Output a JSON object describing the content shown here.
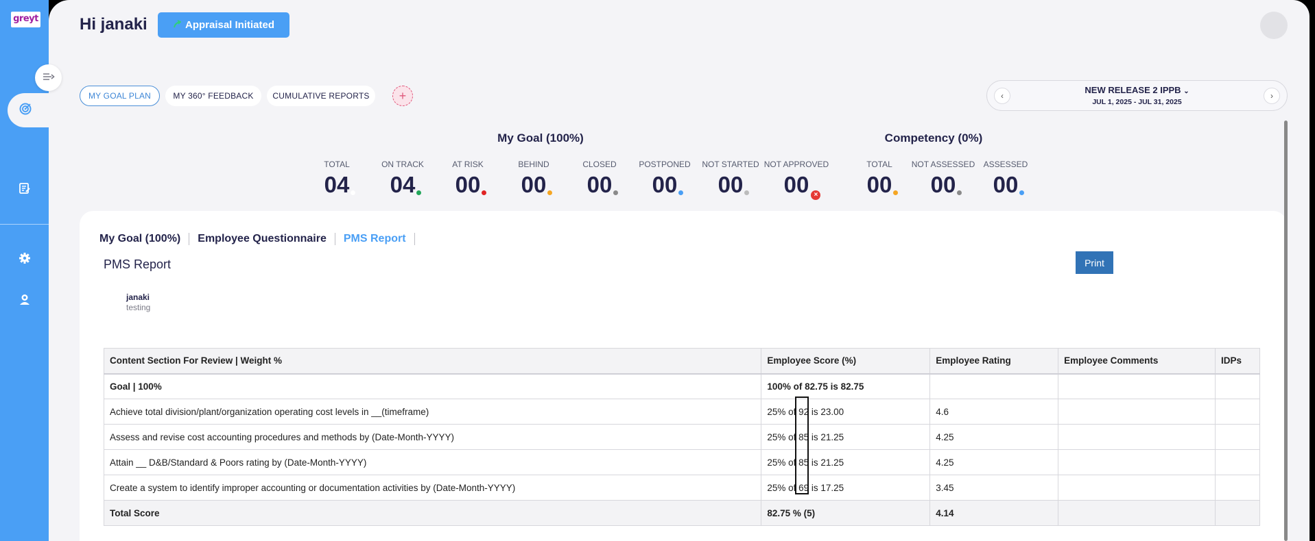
{
  "sidebar": {
    "logo_text": "greyt"
  },
  "header": {
    "greeting": "Hi janaki",
    "status": "Appraisal Initiated"
  },
  "nav_tabs": [
    "MY GOAL PLAN",
    "MY 360° FEEDBACK",
    "CUMULATIVE REPORTS"
  ],
  "release": {
    "name": "NEW RELEASE 2 IPPB",
    "dates": "JUL 1, 2025 - JUL 31, 2025"
  },
  "goal_summary": {
    "title": "My Goal (100%)",
    "stats": [
      {
        "label": "TOTAL",
        "value": "04",
        "color": "#ffffff"
      },
      {
        "label": "ON TRACK",
        "value": "04",
        "color": "#22a65a"
      },
      {
        "label": "AT RISK",
        "value": "00",
        "color": "#e02424"
      },
      {
        "label": "BEHIND",
        "value": "00",
        "color": "#f5a623"
      },
      {
        "label": "CLOSED",
        "value": "00",
        "color": "#8a8a8a"
      },
      {
        "label": "POSTPONED",
        "value": "00",
        "color": "#4a9ff5"
      },
      {
        "label": "NOT STARTED",
        "value": "00",
        "color": "#bcbcbc"
      },
      {
        "label": "NOT APPROVED",
        "value": "00",
        "color": "#e53935"
      }
    ]
  },
  "competency_summary": {
    "title": "Competency (0%)",
    "stats": [
      {
        "label": "TOTAL",
        "value": "00",
        "color": "#f5a623"
      },
      {
        "label": "NOT ASSESSED",
        "value": "00",
        "color": "#8a8a8a"
      },
      {
        "label": "ASSESSED",
        "value": "00",
        "color": "#4a9ff5"
      }
    ]
  },
  "content_tabs": [
    "My Goal (100%)",
    "Employee Questionnaire",
    "PMS Report"
  ],
  "report": {
    "title": "PMS Report",
    "print_label": "Print",
    "employee_name": "janaki",
    "employee_dept": "testing",
    "columns": [
      "Content Section For Review | Weight %",
      "Employee Score (%)",
      "Employee Rating",
      "Employee Comments",
      "IDPs"
    ],
    "rows": [
      [
        "Goal | 100%",
        "100% of 82.75 is 82.75",
        "",
        "",
        ""
      ],
      [
        "Achieve total division/plant/organization operating cost levels in __(timeframe)",
        "25% of 92 is 23.00",
        "4.6",
        "",
        ""
      ],
      [
        "Assess and revise cost accounting procedures and methods by (Date-Month-YYYY)",
        "25% of 85 is 21.25",
        "4.25",
        "",
        ""
      ],
      [
        "Attain __ D&B/Standard & Poors rating by (Date-Month-YYYY)",
        "25% of 85 is 21.25",
        "4.25",
        "",
        ""
      ],
      [
        "Create a system to identify improper accounting or documentation activities by (Date-Month-YYYY)",
        "25% of 69 is 17.25",
        "3.45",
        "",
        ""
      ],
      [
        "Total Score",
        "82.75 % (5)",
        "4.14",
        "",
        ""
      ]
    ]
  }
}
